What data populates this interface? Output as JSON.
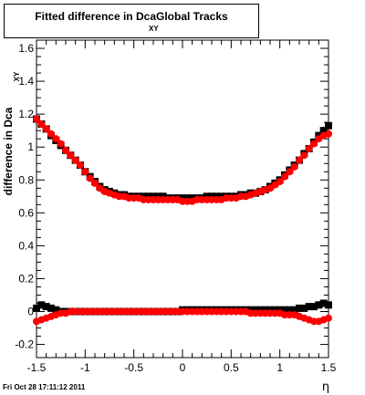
{
  "title": {
    "main": "Fitted difference in Dca",
    "sub": "XY",
    "tail": "Global Tracks"
  },
  "timestamp": "Fri Oct 28 17:11:12 2011",
  "colors": {
    "series_black": "#000000",
    "series_red": "#ff0000",
    "axis": "#000000"
  },
  "chart_data": {
    "type": "scatter",
    "title": "Fitted difference in Dca XY Global Tracks",
    "xlabel": "η",
    "ylabel": "difference in Dca",
    "ylabel_sub": "XY",
    "xlim": [
      -1.5,
      1.5
    ],
    "ylim": [
      -0.28,
      1.65
    ],
    "xticks": [
      "-1.5",
      "-1",
      "-0.5",
      "0",
      "0.5",
      "1",
      "1.5"
    ],
    "yticks": [
      "-0.2",
      "0",
      "0.2",
      "0.4",
      "0.6",
      "0.8",
      "1",
      "1.2",
      "1.4",
      "1.6"
    ],
    "grid": false,
    "legend": "none",
    "x": [
      -1.5,
      -1.45,
      -1.4,
      -1.35,
      -1.3,
      -1.25,
      -1.2,
      -1.15,
      -1.1,
      -1.05,
      -1.0,
      -0.95,
      -0.9,
      -0.85,
      -0.8,
      -0.75,
      -0.7,
      -0.65,
      -0.6,
      -0.55,
      -0.5,
      -0.45,
      -0.4,
      -0.35,
      -0.3,
      -0.25,
      -0.2,
      -0.15,
      -0.1,
      -0.05,
      0.0,
      0.05,
      0.1,
      0.15,
      0.2,
      0.25,
      0.3,
      0.35,
      0.4,
      0.45,
      0.5,
      0.55,
      0.6,
      0.65,
      0.7,
      0.75,
      0.8,
      0.85,
      0.9,
      0.95,
      1.0,
      1.05,
      1.1,
      1.15,
      1.2,
      1.25,
      1.3,
      1.35,
      1.4,
      1.45,
      1.5
    ],
    "series": [
      {
        "color": "black",
        "values": [
          1.17,
          1.14,
          1.11,
          1.07,
          1.04,
          1.01,
          0.98,
          0.95,
          0.92,
          0.89,
          0.85,
          0.82,
          0.79,
          0.76,
          0.74,
          0.73,
          0.72,
          0.71,
          0.71,
          0.7,
          0.7,
          0.7,
          0.7,
          0.7,
          0.7,
          0.7,
          0.7,
          0.69,
          0.69,
          0.69,
          0.69,
          0.69,
          0.69,
          0.69,
          0.69,
          0.7,
          0.7,
          0.7,
          0.7,
          0.7,
          0.7,
          0.7,
          0.71,
          0.71,
          0.72,
          0.72,
          0.73,
          0.74,
          0.76,
          0.78,
          0.8,
          0.83,
          0.86,
          0.89,
          0.92,
          0.96,
          0.99,
          1.03,
          1.07,
          1.1,
          1.13
        ]
      },
      {
        "color": "red",
        "values": [
          1.17,
          1.14,
          1.11,
          1.08,
          1.05,
          1.02,
          0.98,
          0.95,
          0.92,
          0.89,
          0.85,
          0.81,
          0.78,
          0.75,
          0.73,
          0.72,
          0.71,
          0.7,
          0.7,
          0.69,
          0.69,
          0.69,
          0.68,
          0.68,
          0.68,
          0.68,
          0.68,
          0.68,
          0.68,
          0.68,
          0.67,
          0.67,
          0.67,
          0.68,
          0.68,
          0.68,
          0.68,
          0.68,
          0.68,
          0.69,
          0.69,
          0.69,
          0.7,
          0.7,
          0.71,
          0.72,
          0.73,
          0.74,
          0.75,
          0.77,
          0.79,
          0.82,
          0.85,
          0.88,
          0.92,
          0.95,
          0.99,
          1.02,
          1.05,
          1.07,
          1.08
        ]
      },
      {
        "color": "black",
        "values": [
          0.02,
          0.04,
          0.03,
          0.02,
          0.01,
          0.0,
          0.0,
          0.0,
          0.0,
          0.0,
          0.0,
          0.0,
          0.0,
          0.0,
          0.0,
          0.0,
          0.0,
          0.0,
          0.0,
          0.0,
          0.0,
          0.0,
          0.0,
          0.0,
          0.0,
          0.0,
          0.0,
          0.0,
          0.0,
          0.0,
          0.01,
          0.01,
          0.01,
          0.01,
          0.01,
          0.01,
          0.01,
          0.01,
          0.01,
          0.01,
          0.01,
          0.01,
          0.01,
          0.01,
          0.01,
          0.01,
          0.01,
          0.01,
          0.01,
          0.01,
          0.01,
          0.01,
          0.01,
          0.01,
          0.02,
          0.02,
          0.03,
          0.03,
          0.04,
          0.05,
          0.04
        ]
      },
      {
        "color": "red",
        "values": [
          -0.06,
          -0.05,
          -0.04,
          -0.03,
          -0.02,
          -0.01,
          -0.01,
          0.0,
          0.0,
          0.0,
          0.0,
          0.0,
          0.0,
          0.0,
          0.0,
          0.0,
          0.0,
          0.0,
          0.0,
          0.0,
          0.0,
          0.0,
          0.0,
          0.0,
          0.0,
          0.0,
          0.0,
          0.0,
          0.0,
          0.0,
          0.0,
          0.0,
          0.0,
          0.0,
          0.0,
          0.0,
          0.0,
          0.0,
          0.0,
          0.0,
          0.0,
          0.0,
          0.0,
          0.0,
          -0.01,
          -0.01,
          -0.01,
          -0.01,
          -0.01,
          -0.01,
          -0.01,
          -0.02,
          -0.02,
          -0.02,
          -0.03,
          -0.04,
          -0.05,
          -0.06,
          -0.06,
          -0.05,
          -0.04
        ]
      }
    ]
  }
}
